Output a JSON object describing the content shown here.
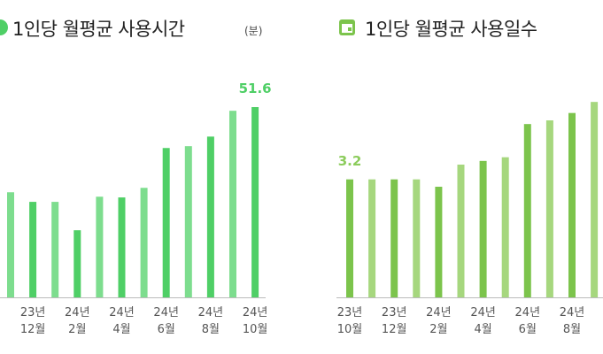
{
  "chart_data": [
    {
      "type": "bar",
      "title": "1인당 월평균 사용시간",
      "unit": "(분)",
      "categories": [
        null,
        "23년 12월",
        null,
        "24년 2월",
        null,
        "24년 4월",
        null,
        "24년 6월",
        null,
        "24년 8월",
        null,
        "24년 10월"
      ],
      "values": [
        28.5,
        25.9,
        25.9,
        18.2,
        27.3,
        27.1,
        29.7,
        40.5,
        41.0,
        43.6,
        50.6,
        51.6
      ],
      "value_labels": [
        null,
        null,
        null,
        null,
        null,
        null,
        null,
        null,
        null,
        null,
        null,
        "51.6"
      ],
      "colors": [
        "#7ddd8e",
        "#4fcf66",
        "#7ddd8e",
        "#4fcf66",
        "#7ddd8e",
        "#4fcf66",
        "#7ddd8e",
        "#4fcf66",
        "#7ddd8e",
        "#4fcf66",
        "#7ddd8e",
        "#4fcf66"
      ],
      "label_color": "#4fcf66",
      "ylim": [
        0,
        60
      ]
    },
    {
      "type": "bar",
      "title": "1인당 월평균 사용일수",
      "categories": [
        "23년 10월",
        null,
        "23년 12월",
        null,
        "24년 2월",
        null,
        "24년 4월",
        null,
        "24년 6월",
        null,
        "24년 8월",
        null
      ],
      "values": [
        3.2,
        3.2,
        3.2,
        3.2,
        3.0,
        3.6,
        3.7,
        3.8,
        4.7,
        4.8,
        5.0,
        5.3
      ],
      "value_labels": [
        "3.2",
        null,
        null,
        null,
        null,
        null,
        null,
        null,
        null,
        null,
        null,
        null
      ],
      "colors": [
        "#7cc44c",
        "#a6d77e",
        "#7cc44c",
        "#a6d77e",
        "#7cc44c",
        "#a6d77e",
        "#7cc44c",
        "#a6d77e",
        "#7cc44c",
        "#a6d77e",
        "#7cc44c",
        "#a6d77e"
      ],
      "label_color": "#8ccc5c",
      "ylim": [
        0,
        6
      ]
    }
  ]
}
